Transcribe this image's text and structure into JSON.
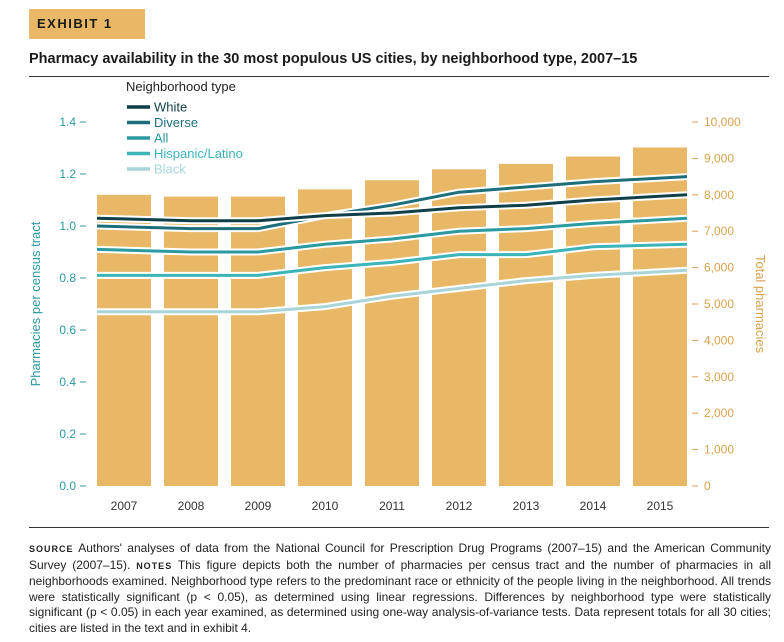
{
  "exhibit_label": "EXHIBIT 1",
  "title": "Pharmacy availability in the 30 most populous US cities, by neighborhood type, 2007–15",
  "chart_data": {
    "type": "bar+line",
    "title": "Pharmacy availability in the 30 most populous US cities, by neighborhood type, 2007–15",
    "categories": [
      "2007",
      "2008",
      "2009",
      "2010",
      "2011",
      "2012",
      "2013",
      "2014",
      "2015"
    ],
    "bars": {
      "name": "Total pharmacies",
      "axis": "right",
      "values": [
        8000,
        7950,
        7950,
        8150,
        8400,
        8700,
        8850,
        9050,
        9300
      ],
      "color": "#e8b866"
    },
    "legend_title": "Neighborhood type",
    "series": [
      {
        "name": "White",
        "color": "#0f3f49",
        "values": [
          1.03,
          1.02,
          1.02,
          1.04,
          1.05,
          1.07,
          1.08,
          1.1,
          1.12
        ]
      },
      {
        "name": "Diverse",
        "color": "#1c6f7a",
        "values": [
          1.0,
          0.99,
          0.99,
          1.04,
          1.08,
          1.13,
          1.15,
          1.17,
          1.19
        ]
      },
      {
        "name": "All",
        "color": "#2a9aa0",
        "values": [
          0.91,
          0.9,
          0.9,
          0.93,
          0.95,
          0.98,
          0.99,
          1.01,
          1.03
        ]
      },
      {
        "name": "Hispanic/Latino",
        "color": "#3bb4b9",
        "values": [
          0.81,
          0.81,
          0.81,
          0.84,
          0.86,
          0.89,
          0.89,
          0.92,
          0.93
        ]
      },
      {
        "name": "Black",
        "color": "#a9d5da",
        "values": [
          0.67,
          0.67,
          0.67,
          0.69,
          0.73,
          0.76,
          0.79,
          0.81,
          0.83
        ]
      }
    ],
    "y_left": {
      "label": "Pharmacies per census tract",
      "ylim": [
        0,
        1.4
      ],
      "ticks": [
        "0.0",
        "0.2",
        "0.4",
        "0.6",
        "0.8",
        "1.0",
        "1.2",
        "1.4"
      ],
      "color": "#2a9aa0"
    },
    "y_right": {
      "label": "Total pharmacies",
      "ylim": [
        0,
        10000
      ],
      "ticks": [
        "0",
        "1,000",
        "2,000",
        "3,000",
        "4,000",
        "5,000",
        "6,000",
        "7,000",
        "8,000",
        "9,000",
        "10,000"
      ],
      "color": "#d9a24c"
    },
    "grid": false,
    "legend_placement": "top-left"
  },
  "notes": {
    "source_tag": "SOURCE",
    "source_text": " Authors' analyses of data from the National Council for Prescription Drug Programs (2007–15) and the American Community Survey (2007–15). ",
    "notes_tag": "NOTES",
    "notes_text": " This figure depicts both the number of pharmacies per census tract and the number of pharmacies in all neighborhoods examined. Neighborhood type refers to the predominant race or ethnicity of the people living in the neighborhood. All trends were statistically significant (p < 0.05), as determined using linear regressions. Differences by neighborhood type were statistically significant (p < 0.05) in each year examined, as determined using one-way analysis-of-variance tests. Data represent totals for all 30 cities; cities are listed in the text and in exhibit 4."
  }
}
